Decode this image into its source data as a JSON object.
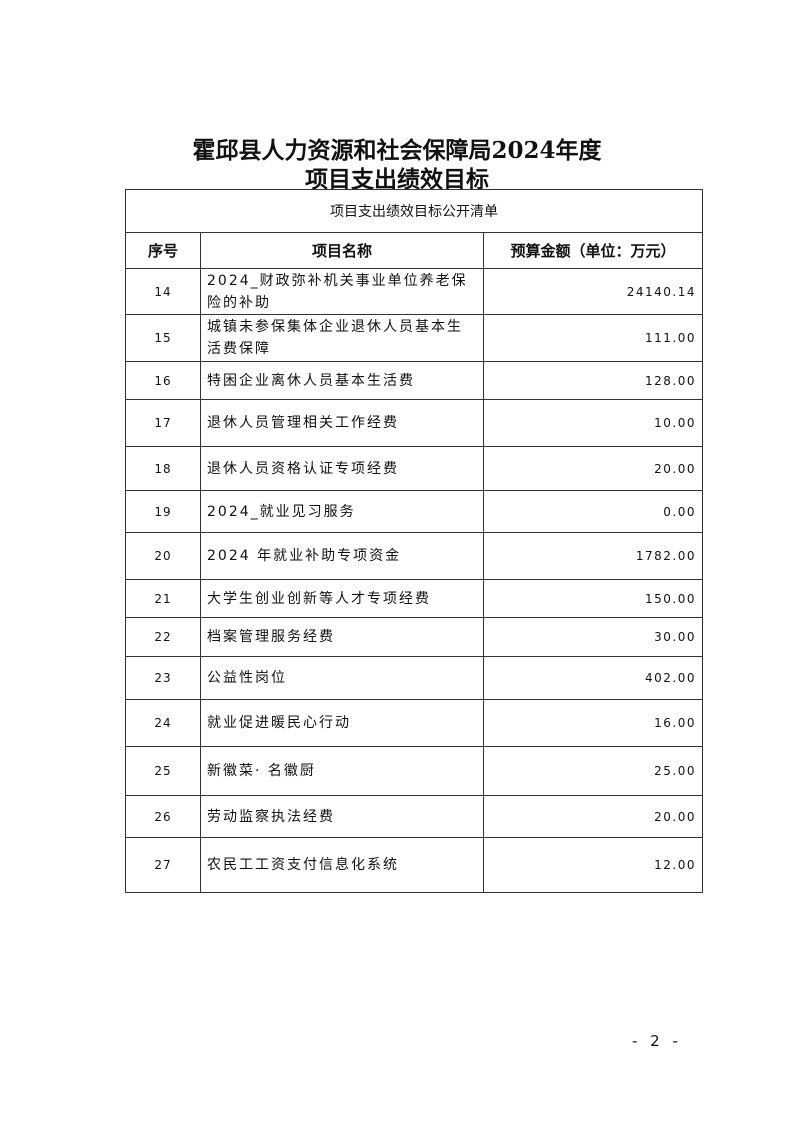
{
  "title_line1": "霍邱县人力资源和社会保障局2024年度",
  "title_line2": "项目支出绩效目标",
  "table_caption": "项目支出绩效目标公开清单",
  "columns": [
    "序号",
    "项目名称",
    "预算金额（单位：万元）"
  ],
  "rows": [
    {
      "no": "14",
      "name": "2024_财政弥补机关事业单位养老保险的补助",
      "amount": "24140.14"
    },
    {
      "no": "15",
      "name": "城镇未参保集体企业退休人员基本生活费保障",
      "amount": "111.00"
    },
    {
      "no": "16",
      "name": "特困企业离休人员基本生活费",
      "amount": "128.00"
    },
    {
      "no": "17",
      "name": "退休人员管理相关工作经费",
      "amount": "10.00"
    },
    {
      "no": "18",
      "name": "退休人员资格认证专项经费",
      "amount": "20.00"
    },
    {
      "no": "19",
      "name": "2024_就业见习服务",
      "amount": "0.00"
    },
    {
      "no": "20",
      "name": "2024 年就业补助专项资金",
      "amount": "1782.00"
    },
    {
      "no": "21",
      "name": "大学生创业创新等人才专项经费",
      "amount": "150.00"
    },
    {
      "no": "22",
      "name": "档案管理服务经费",
      "amount": "30.00"
    },
    {
      "no": "23",
      "name": "公益性岗位",
      "amount": "402.00"
    },
    {
      "no": "24",
      "name": "就业促进暖民心行动",
      "amount": "16.00"
    },
    {
      "no": "25",
      "name": "新徽菜· 名徽厨",
      "amount": "25.00"
    },
    {
      "no": "26",
      "name": "劳动监察执法经费",
      "amount": "20.00"
    },
    {
      "no": "27",
      "name": "农民工工资支付信息化系统",
      "amount": "12.00"
    }
  ],
  "page_number": "- 2 -"
}
